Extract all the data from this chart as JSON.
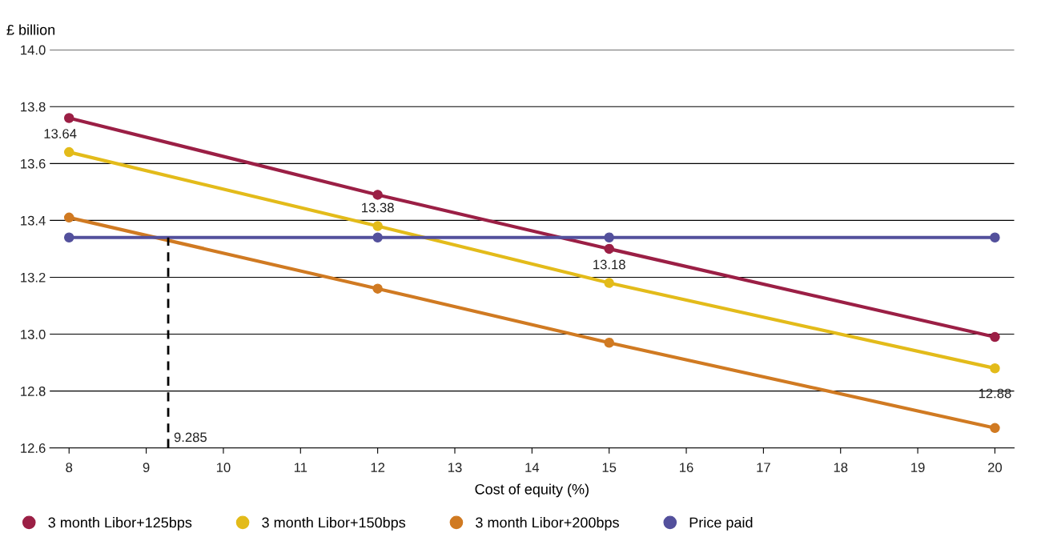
{
  "chart_data": {
    "type": "line",
    "xlabel": "Cost of equity (%)",
    "ylabel": "£ billion",
    "x": [
      8,
      12,
      15,
      20
    ],
    "series": [
      {
        "name": "3 month Libor+125bps",
        "color": "#9b1f45",
        "values": [
          13.76,
          13.49,
          13.3,
          12.99
        ]
      },
      {
        "name": "3 month Libor+150bps",
        "color": "#e3bb1a",
        "values": [
          13.64,
          13.38,
          13.18,
          12.88
        ],
        "value_labels": [
          "13.64",
          "13.38",
          "13.18",
          "12.88"
        ]
      },
      {
        "name": "3 month Libor+200bps",
        "color": "#d07a22",
        "values": [
          13.41,
          13.16,
          12.97,
          12.67
        ]
      },
      {
        "name": "Price paid",
        "color": "#53509c",
        "values": [
          13.34,
          13.34,
          13.34,
          13.34
        ]
      },
      {
        "color": "#000000",
        "x": [
          9.285,
          9.285
        ],
        "values": [
          12.6,
          13.34
        ],
        "line_style": "dashed",
        "marker": "none"
      }
    ],
    "annotations": [
      {
        "text": "9.285",
        "x": 9.285,
        "y": 12.6
      }
    ],
    "xlim": [
      7.75,
      20.25
    ],
    "xticks": [
      8,
      9,
      10,
      11,
      12,
      13,
      14,
      15,
      16,
      17,
      18,
      19,
      20
    ],
    "ylim": [
      12.6,
      14.0
    ],
    "yticks": [
      12.6,
      12.8,
      {
        "value": 13,
        "label": "13.0"
      },
      13.2,
      13.4,
      13.6,
      13.8,
      {
        "value": 14,
        "label": "14.0"
      }
    ],
    "grid": "y",
    "legend": "bottom",
    "marker": "circle",
    "line_style": "solid"
  }
}
